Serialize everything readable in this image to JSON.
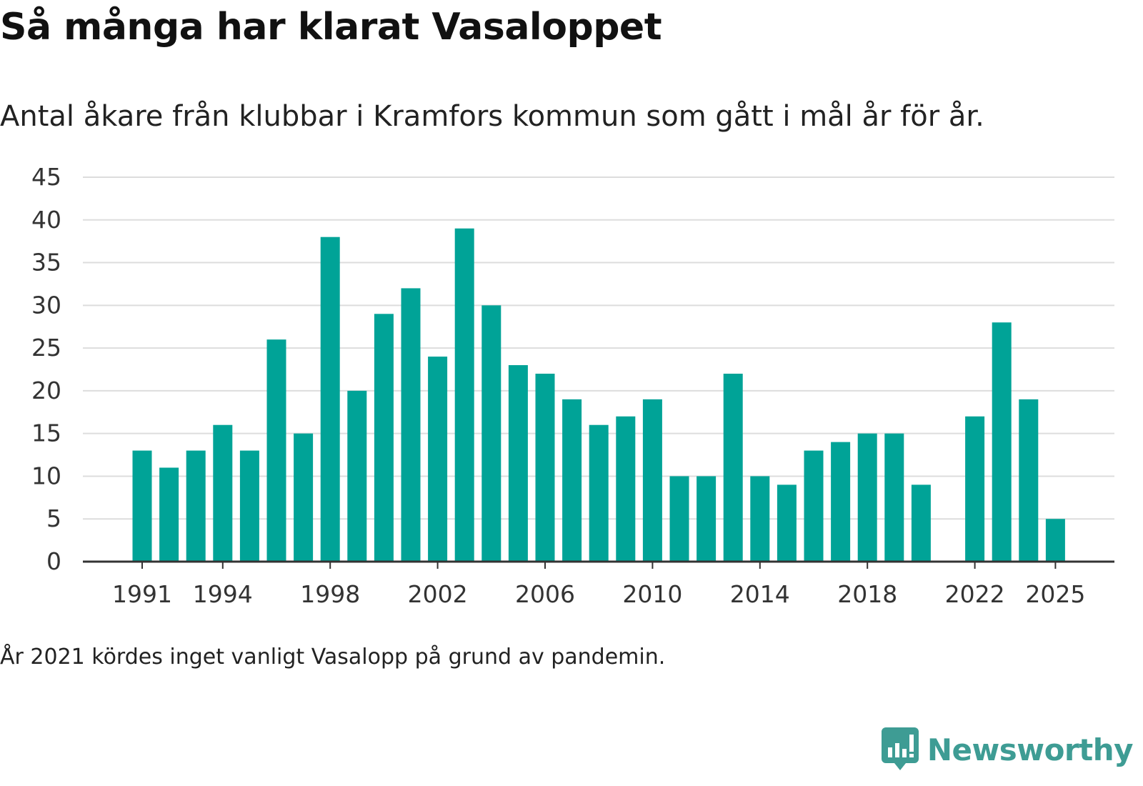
{
  "header": {
    "title": "Så många har klarat Vasaloppet",
    "subtitle": "Antal åkare från klubbar i Kramfors kommun som gått i mål år för år."
  },
  "footer": {
    "note": "År 2021 kördes inget vanligt Vasalopp på grund av pandemin.",
    "brand": "Newsworthy"
  },
  "colors": {
    "bar": "#00a397",
    "grid": "#dddddd",
    "axis": "#333333",
    "text": "#333333",
    "brand": "#3e9c94"
  },
  "chart_data": {
    "type": "bar",
    "title": "Så många har klarat Vasaloppet",
    "xlabel": "",
    "ylabel": "",
    "ylim": [
      0,
      45
    ],
    "yticks": [
      0,
      5,
      10,
      15,
      20,
      25,
      30,
      35,
      40,
      45
    ],
    "xtick_labels": [
      "1991",
      "1994",
      "1998",
      "2002",
      "2006",
      "2010",
      "2014",
      "2018",
      "2022",
      "2025"
    ],
    "grid": true,
    "categories": [
      "1991",
      "1992",
      "1993",
      "1994",
      "1995",
      "1996",
      "1997",
      "1998",
      "1999",
      "2000",
      "2001",
      "2002",
      "2003",
      "2004",
      "2005",
      "2006",
      "2007",
      "2008",
      "2009",
      "2010",
      "2011",
      "2012",
      "2013",
      "2014",
      "2015",
      "2016",
      "2017",
      "2018",
      "2019",
      "2020",
      "2021",
      "2022",
      "2023",
      "2024",
      "2025"
    ],
    "values": [
      13,
      11,
      13,
      16,
      13,
      26,
      15,
      38,
      20,
      29,
      32,
      24,
      39,
      30,
      23,
      22,
      19,
      16,
      17,
      19,
      10,
      10,
      22,
      10,
      9,
      13,
      14,
      15,
      15,
      9,
      null,
      17,
      28,
      19,
      5
    ]
  }
}
